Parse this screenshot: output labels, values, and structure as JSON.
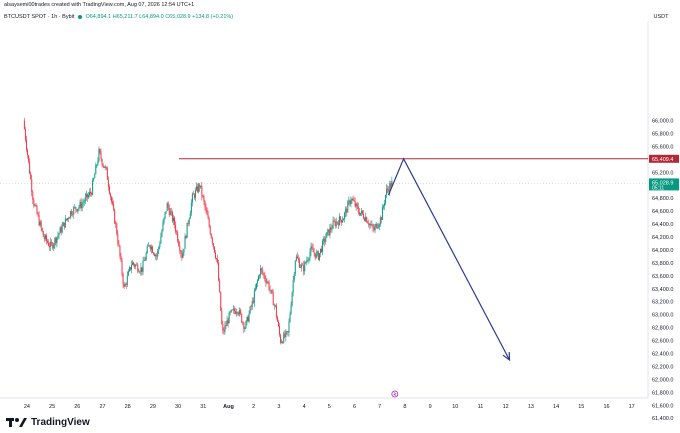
{
  "header": {
    "attribution": "alsaysemi00trades created with TradingView.com, Aug 07, 2026 12:54 UTC+1"
  },
  "ohlc": {
    "symbol": "BTCUSDT SPOT · 1h · Bybit",
    "o": "O64,894.1",
    "h": "H65,211.7",
    "l": "L64,894.0",
    "c": "C65,028.9",
    "chg": "+134.8 (+0.21%)"
  },
  "footer": {
    "brand": "TradingView"
  },
  "colors": {
    "up": "#089981",
    "down": "#f23645",
    "arrow": "#2a3d8f",
    "resistance": "#b22834",
    "current": "#089981"
  },
  "chart_data": {
    "type": "candlestick",
    "title": "BTCUSDT SPOT · 1h · Bybit",
    "currency": "USDT",
    "ylim": [
      61400,
      66400
    ],
    "y_ticks": [
      "66,000.0",
      "65,800.0",
      "65,600.0",
      "65,200.0",
      "65,000.0",
      "64,800.0",
      "64,600.0",
      "64,400.0",
      "64,200.0",
      "64,000.0",
      "63,800.0",
      "63,600.0",
      "63,400.0",
      "63,200.0",
      "63,000.0",
      "62,800.0",
      "62,600.0",
      "62,400.0",
      "62,200.0",
      "62,000.0",
      "61,800.0",
      "61,600.0",
      "61,400.0"
    ],
    "y_tick_values": [
      66000,
      65800,
      65600,
      65200,
      65000,
      64800,
      64600,
      64400,
      64200,
      64000,
      63800,
      63600,
      63400,
      63200,
      63000,
      62800,
      62600,
      62400,
      62200,
      62000,
      61800,
      61600,
      61400
    ],
    "x_labels": [
      "24",
      "25",
      "26",
      "27",
      "28",
      "29",
      "30",
      "31",
      "Aug",
      "2",
      "3",
      "4",
      "5",
      "6",
      "7",
      "8",
      "9",
      "10",
      "11",
      "12",
      "13",
      "14",
      "15",
      "16",
      "17"
    ],
    "resistance_level": 65409.4,
    "resistance_label": "65,409.4",
    "current_price": 65028.9,
    "current_label": "65,028.9",
    "current_timer": "05:11",
    "price_path": [
      {
        "day": 23.9,
        "price": 66000
      },
      {
        "day": 24.3,
        "price": 64750
      },
      {
        "day": 24.7,
        "price": 64200
      },
      {
        "day": 25.0,
        "price": 64050
      },
      {
        "day": 25.3,
        "price": 64250
      },
      {
        "day": 25.8,
        "price": 64600
      },
      {
        "day": 26.2,
        "price": 64700
      },
      {
        "day": 26.6,
        "price": 64900
      },
      {
        "day": 26.9,
        "price": 65500
      },
      {
        "day": 27.2,
        "price": 65200
      },
      {
        "day": 27.6,
        "price": 64300
      },
      {
        "day": 27.9,
        "price": 63400
      },
      {
        "day": 28.2,
        "price": 63800
      },
      {
        "day": 28.6,
        "price": 63700
      },
      {
        "day": 28.9,
        "price": 64100
      },
      {
        "day": 29.2,
        "price": 63900
      },
      {
        "day": 29.6,
        "price": 64700
      },
      {
        "day": 29.9,
        "price": 64400
      },
      {
        "day": 30.2,
        "price": 63900
      },
      {
        "day": 30.6,
        "price": 64800
      },
      {
        "day": 30.9,
        "price": 65000
      },
      {
        "day": 31.2,
        "price": 64500
      },
      {
        "day": 31.6,
        "price": 63800
      },
      {
        "day": 31.8,
        "price": 62700
      },
      {
        "day": 32.1,
        "price": 63000
      },
      {
        "day": 32.4,
        "price": 63100
      },
      {
        "day": 32.7,
        "price": 62800
      },
      {
        "day": 33.0,
        "price": 63200
      },
      {
        "day": 33.3,
        "price": 63700
      },
      {
        "day": 33.6,
        "price": 63500
      },
      {
        "day": 33.9,
        "price": 63100
      },
      {
        "day": 34.1,
        "price": 62600
      },
      {
        "day": 34.4,
        "price": 62700
      },
      {
        "day": 34.7,
        "price": 63900
      },
      {
        "day": 35.0,
        "price": 63700
      },
      {
        "day": 35.3,
        "price": 64000
      },
      {
        "day": 35.6,
        "price": 63900
      },
      {
        "day": 35.9,
        "price": 64200
      },
      {
        "day": 36.2,
        "price": 64400
      },
      {
        "day": 36.6,
        "price": 64500
      },
      {
        "day": 36.9,
        "price": 64800
      },
      {
        "day": 37.2,
        "price": 64600
      },
      {
        "day": 37.5,
        "price": 64500
      },
      {
        "day": 37.8,
        "price": 64300
      },
      {
        "day": 38.1,
        "price": 64500
      },
      {
        "day": 38.3,
        "price": 64900
      },
      {
        "day": 38.5,
        "price": 65029
      }
    ],
    "projection": [
      {
        "day": 38.35,
        "price": 64850
      },
      {
        "day": 38.95,
        "price": 65409.4
      },
      {
        "day": 43.15,
        "price": 62300
      }
    ]
  }
}
